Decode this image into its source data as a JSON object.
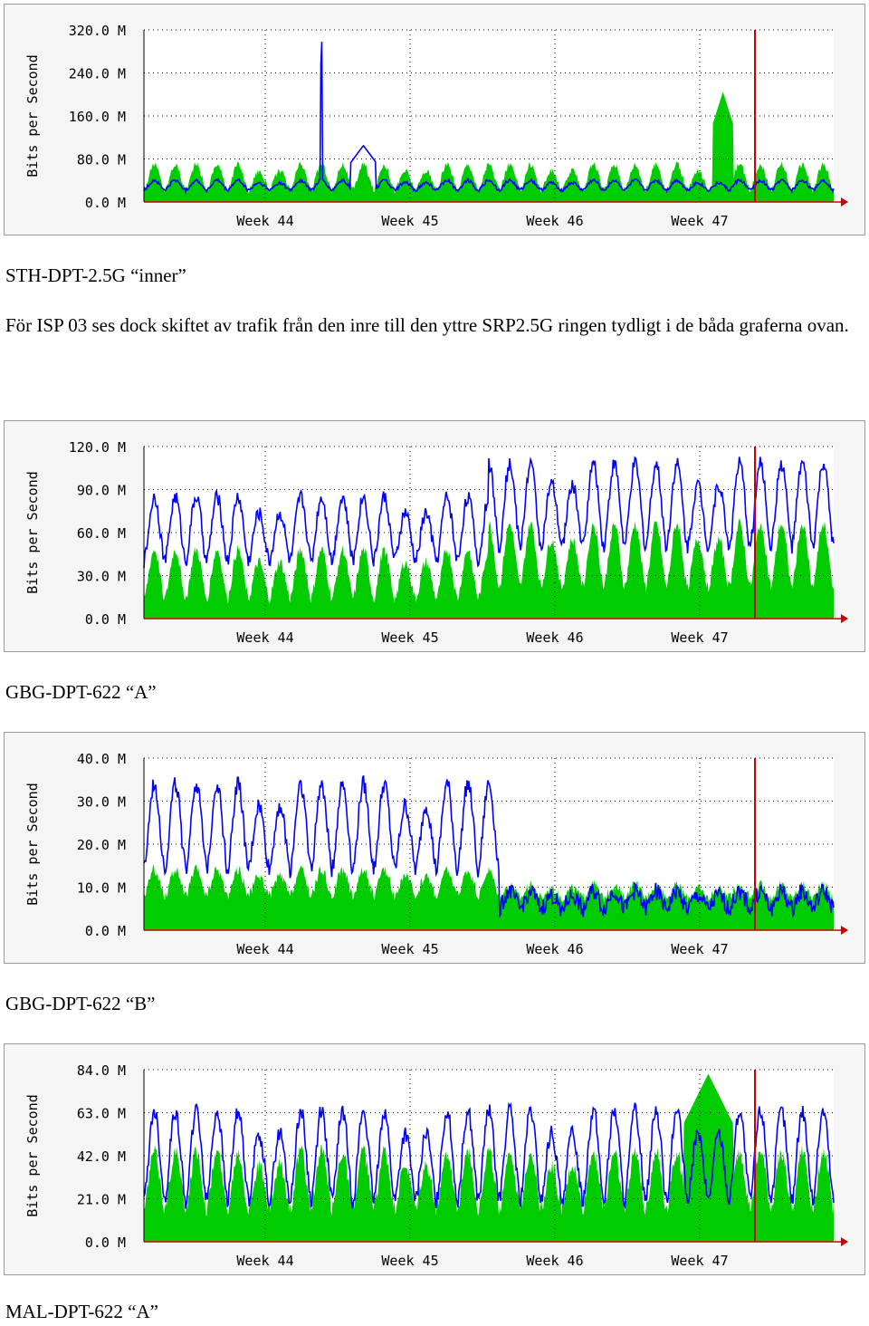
{
  "graph_ylabel": "Bits per Second",
  "colors": {
    "in": "#00cc00",
    "out": "#0000ff",
    "now": "#cc0000",
    "grid": "#000000",
    "panel": "#f5f5f5"
  },
  "captions": {
    "c1": "STH-DPT-2.5G “inner”",
    "c2": "GBG-DPT-622 “A”",
    "c3": "GBG-DPT-622 “B”",
    "c4": "MAL-DPT-622 “A”"
  },
  "paragraph": "För ISP 03 ses dock skiftet av trafik från den inre till den yttre SRP2.5G ringen tydligt i de båda graferna ovan.",
  "chart_data": [
    {
      "type": "area",
      "title": "",
      "ylabel": "Bits per Second",
      "x_tick_labels": [
        "Week 44",
        "Week 45",
        "Week 46",
        "Week 47"
      ],
      "y_tick_labels": [
        "0.0 M",
        "80.0 M",
        "160.0 M",
        "240.0 M",
        "320.0 M"
      ],
      "ylim": [
        0,
        320
      ],
      "unit": "M",
      "days": 33,
      "series": [
        {
          "name": "",
          "kind": "area",
          "base": 22,
          "amp": 48,
          "noise": 6,
          "events": [
            {
              "day": 27.7,
              "width": 0.5,
              "value": 205
            }
          ]
        },
        {
          "name": "",
          "kind": "line",
          "base": 22,
          "amp": 18,
          "noise": 3,
          "events": [
            {
              "day": 8.5,
              "width": 0.05,
              "value": 318
            },
            {
              "day": 10.5,
              "width": 0.6,
              "value": 105
            }
          ]
        }
      ]
    },
    {
      "type": "area",
      "title": "",
      "ylabel": "Bits per Second",
      "x_tick_labels": [
        "Week 44",
        "Week 45",
        "Week 46",
        "Week 47"
      ],
      "y_tick_labels": [
        "0.0 M",
        "30.0 M",
        "60.0 M",
        "90.0 M",
        "120.0 M"
      ],
      "ylim": [
        0,
        120
      ],
      "unit": "M",
      "days": 33,
      "series": [
        {
          "name": "",
          "kind": "area",
          "base": 14,
          "amp": 34,
          "noise": 4,
          "segments": [
            {
              "from": 16.5,
              "base": 22,
              "amp": 44
            }
          ]
        },
        {
          "name": "",
          "kind": "line",
          "base": 40,
          "amp": 45,
          "noise": 5,
          "segments": [
            {
              "from": 16.5,
              "base": 50,
              "amp": 58
            }
          ]
        }
      ]
    },
    {
      "type": "area",
      "title": "",
      "ylabel": "Bits per Second",
      "x_tick_labels": [
        "Week 44",
        "Week 45",
        "Week 46",
        "Week 47"
      ],
      "y_tick_labels": [
        "0.0 M",
        "10.0 M",
        "20.0 M",
        "30.0 M",
        "40.0 M"
      ],
      "ylim": [
        0,
        40
      ],
      "unit": "M",
      "days": 33,
      "series": [
        {
          "name": "",
          "kind": "area",
          "base": 8,
          "amp": 6,
          "noise": 1.2,
          "segments": [
            {
              "from": 17,
              "base": 7.5,
              "amp": 3
            }
          ]
        },
        {
          "name": "",
          "kind": "line",
          "base": 14,
          "amp": 20,
          "noise": 2,
          "segments": [
            {
              "from": 17,
              "base": 5,
              "amp": 4
            }
          ]
        }
      ]
    },
    {
      "type": "area",
      "title": "",
      "ylabel": "Bits per Second",
      "x_tick_labels": [
        "Week 44",
        "Week 45",
        "Week 46",
        "Week 47"
      ],
      "y_tick_labels": [
        "0.0 M",
        "21.0 M",
        "42.0 M",
        "63.0 M",
        "84.0 M"
      ],
      "ylim": [
        0,
        84
      ],
      "unit": "M",
      "days": 33,
      "series": [
        {
          "name": "",
          "kind": "area",
          "base": 16,
          "amp": 28,
          "noise": 4,
          "events": [
            {
              "day": 27,
              "width": 1.2,
              "value": 82
            }
          ]
        },
        {
          "name": "",
          "kind": "line",
          "base": 20,
          "amp": 44,
          "noise": 4
        }
      ]
    }
  ]
}
